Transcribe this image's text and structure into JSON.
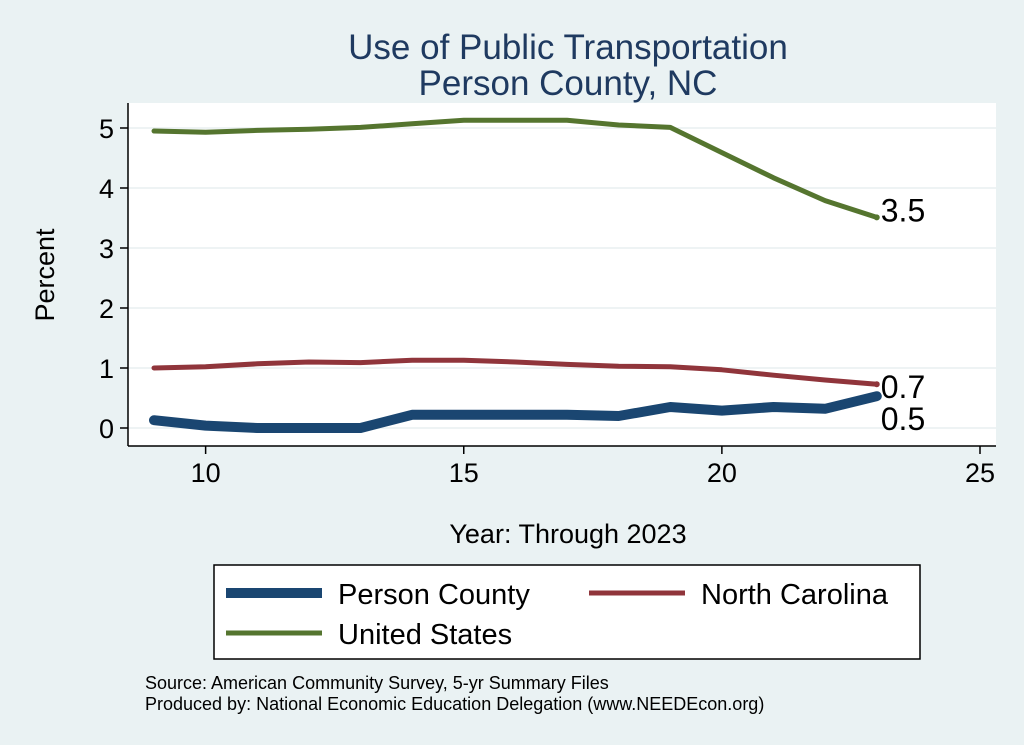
{
  "chart_data": {
    "type": "line",
    "title": [
      "Use of Public Transportation",
      "Person County, NC"
    ],
    "xlabel": "Year: Through 2023",
    "ylabel": "Percent",
    "xlim": [
      9,
      25
    ],
    "ylim": [
      0,
      5.4
    ],
    "xticks": [
      10,
      15,
      20,
      25
    ],
    "yticks": [
      0,
      1,
      2,
      3,
      4,
      5
    ],
    "grid": true,
    "x": [
      9,
      10,
      11,
      12,
      13,
      14,
      15,
      16,
      17,
      18,
      19,
      20,
      21,
      22,
      23
    ],
    "series": [
      {
        "name": "Person County",
        "color": "#1a4671",
        "values": [
          0.13,
          0.04,
          0.0,
          0.0,
          0.0,
          0.22,
          0.22,
          0.22,
          0.22,
          0.2,
          0.35,
          0.29,
          0.35,
          0.32,
          0.53
        ],
        "end_label": "0.5"
      },
      {
        "name": "North Carolina",
        "color": "#90353b",
        "values": [
          1.0,
          1.02,
          1.07,
          1.1,
          1.09,
          1.13,
          1.13,
          1.1,
          1.06,
          1.03,
          1.02,
          0.97,
          0.88,
          0.8,
          0.73
        ],
        "end_label": "0.7"
      },
      {
        "name": "United States",
        "color": "#55752f",
        "values": [
          4.95,
          4.93,
          4.96,
          4.98,
          5.01,
          5.07,
          5.13,
          5.13,
          5.13,
          5.05,
          5.01,
          4.59,
          4.17,
          3.79,
          3.51
        ],
        "end_label": "3.5"
      }
    ],
    "legend": {
      "position": "bottom",
      "entries": [
        "Person County",
        "North Carolina",
        "United States"
      ]
    },
    "notes": [
      "Source: American Community Survey, 5-yr Summary Files",
      "Produced by: National Economic Education Delegation (www.NEEDEcon.org)"
    ]
  }
}
